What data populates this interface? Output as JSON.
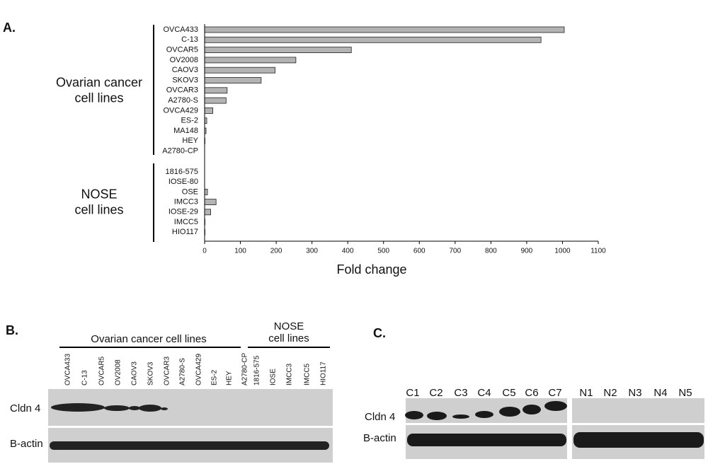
{
  "chart_data": {
    "type": "bar",
    "orientation": "horizontal",
    "panel_label": "A.",
    "xlabel": "Fold change",
    "categories": [
      "OVCA433",
      "C-13",
      "OVCAR5",
      "OV2008",
      "CAOV3",
      "SKOV3",
      "OVCAR3",
      "A2780-S",
      "OVCA429",
      "ES-2",
      "MA148",
      "HEY",
      "A2780-CP",
      "1816-575",
      "IOSE-80",
      "OSE",
      "IMCC3",
      "IOSE-29",
      "IMCC5",
      "HIO117"
    ],
    "values": [
      1005,
      940,
      410,
      255,
      197,
      158,
      63,
      60,
      23,
      6,
      4,
      1,
      0,
      0,
      0,
      8,
      32,
      17,
      1,
      1
    ],
    "color": "#b3b3b3",
    "xlim": [
      0,
      1100
    ],
    "xticks": [
      0,
      100,
      200,
      300,
      400,
      500,
      600,
      700,
      800,
      900,
      1000,
      1100
    ],
    "groups": [
      {
        "lines": [
          "Ovarian cancer",
          "cell lines"
        ],
        "size": 13
      },
      {
        "lines": [
          "NOSE",
          "cell lines"
        ],
        "size": 7
      }
    ]
  },
  "panel_b": {
    "label": "B.",
    "groups": [
      [
        "Ovarian cancer cell lines"
      ],
      [
        "NOSE",
        "cell lines"
      ]
    ],
    "lanes": [
      "OVCA433",
      "C-13",
      "OVCAR5",
      "OV2008",
      "CAOV3",
      "SKOV3",
      "OVCAR3",
      "A2780-S",
      "OVCA429",
      "ES-2",
      "HEY",
      "A2780-CP",
      "1816-575",
      "IOSE",
      "IMCC3",
      "IMCC5",
      "HIO117"
    ],
    "rows": [
      "Cldn 4",
      "B-actin"
    ]
  },
  "panel_c": {
    "label": "C.",
    "lanes_left": [
      "C1",
      "C2",
      "C3",
      "C4",
      "C5",
      "C6",
      "C7"
    ],
    "lanes_right": [
      "N1",
      "N2",
      "N3",
      "N4",
      "N5"
    ],
    "rows": [
      "Cldn 4",
      "B-actin"
    ]
  }
}
